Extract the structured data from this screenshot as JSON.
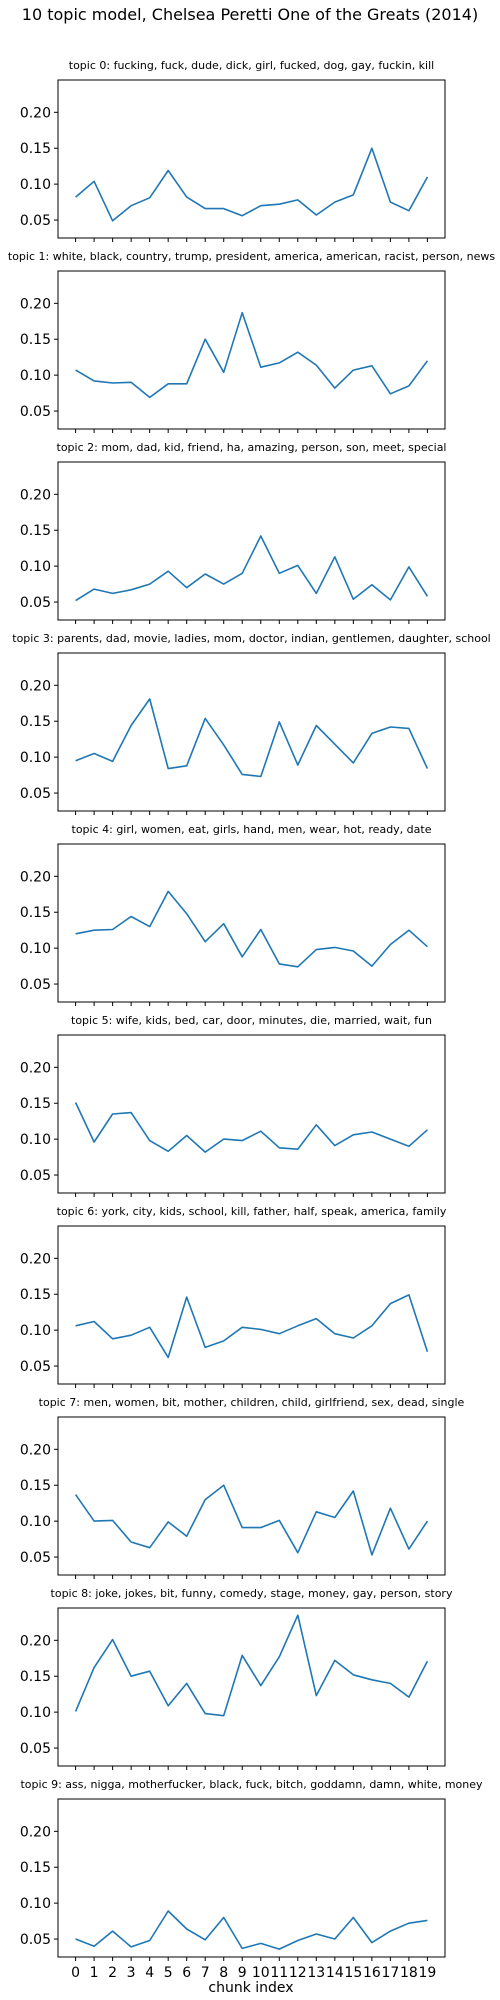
{
  "suptitle": "10 topic model, Chelsea Peretti  One of the Greats (2014)",
  "xlabel": "chunk index",
  "chart_data": {
    "type": "line",
    "x": [
      0,
      1,
      2,
      3,
      4,
      5,
      6,
      7,
      8,
      9,
      10,
      11,
      12,
      13,
      14,
      15,
      16,
      17,
      18,
      19
    ],
    "ylim": [
      0.025,
      0.245
    ],
    "yticks": [
      0.05,
      0.1,
      0.15,
      0.2
    ],
    "grid": false,
    "line_color": "#1f77b4",
    "panels": [
      {
        "title": "topic 0: fucking, fuck, dude, dick, girl, fucked, dog, gay, fuckin, kill",
        "values": [
          0.082,
          0.104,
          0.049,
          0.07,
          0.081,
          0.119,
          0.082,
          0.066,
          0.066,
          0.056,
          0.07,
          0.072,
          0.078,
          0.057,
          0.075,
          0.085,
          0.15,
          0.075,
          0.063,
          0.11
        ]
      },
      {
        "title": "topic 1: white, black, country, trump, president, america, american, racist, person, news",
        "values": [
          0.107,
          0.092,
          0.089,
          0.09,
          0.069,
          0.088,
          0.088,
          0.15,
          0.104,
          0.187,
          0.111,
          0.117,
          0.132,
          0.114,
          0.082,
          0.107,
          0.113,
          0.074,
          0.085,
          0.12
        ]
      },
      {
        "title": "topic 2: mom, dad, kid, friend, ha, amazing, person, son, meet, special",
        "values": [
          0.052,
          0.068,
          0.062,
          0.067,
          0.075,
          0.093,
          0.07,
          0.089,
          0.075,
          0.09,
          0.142,
          0.09,
          0.101,
          0.062,
          0.113,
          0.054,
          0.074,
          0.053,
          0.099,
          0.058
        ]
      },
      {
        "title": "topic 3: parents, dad, movie, ladies, mom, doctor, indian, gentlemen, daughter, school",
        "values": [
          0.095,
          0.105,
          0.094,
          0.144,
          0.181,
          0.084,
          0.088,
          0.154,
          0.117,
          0.076,
          0.073,
          0.149,
          0.089,
          0.144,
          0.118,
          0.092,
          0.133,
          0.142,
          0.14,
          0.084
        ]
      },
      {
        "title": "topic 4: girl, women, eat, girls, hand, men, wear, hot, ready, date",
        "values": [
          0.12,
          0.125,
          0.126,
          0.144,
          0.13,
          0.179,
          0.148,
          0.109,
          0.134,
          0.088,
          0.126,
          0.078,
          0.074,
          0.098,
          0.101,
          0.096,
          0.075,
          0.105,
          0.125,
          0.102
        ]
      },
      {
        "title": "topic 5: wife, kids, bed, car, door, minutes, die, married, wait, fun",
        "values": [
          0.151,
          0.096,
          0.135,
          0.137,
          0.098,
          0.083,
          0.105,
          0.082,
          0.1,
          0.098,
          0.111,
          0.088,
          0.086,
          0.12,
          0.091,
          0.106,
          0.11,
          0.1,
          0.09,
          0.113
        ]
      },
      {
        "title": "topic 6: york, city, kids, school, kill, father, half, speak, america, family",
        "values": [
          0.106,
          0.112,
          0.088,
          0.093,
          0.104,
          0.062,
          0.146,
          0.076,
          0.085,
          0.104,
          0.101,
          0.095,
          0.106,
          0.116,
          0.095,
          0.089,
          0.106,
          0.137,
          0.149,
          0.07
        ]
      },
      {
        "title": "topic 7: men, women, bit, mother, children, child, girlfriend, sex, dead, single",
        "values": [
          0.137,
          0.1,
          0.101,
          0.071,
          0.063,
          0.099,
          0.079,
          0.13,
          0.15,
          0.091,
          0.091,
          0.101,
          0.056,
          0.113,
          0.105,
          0.142,
          0.053,
          0.118,
          0.061,
          0.1
        ]
      },
      {
        "title": "topic 8: joke, jokes, bit, funny, comedy, stage, money, gay, person, story",
        "values": [
          0.101,
          0.162,
          0.201,
          0.15,
          0.157,
          0.109,
          0.14,
          0.098,
          0.095,
          0.179,
          0.137,
          0.177,
          0.235,
          0.123,
          0.172,
          0.152,
          0.145,
          0.14,
          0.121,
          0.171
        ]
      },
      {
        "title": "topic 9: ass, nigga, motherfucker, black, fuck, bitch, goddamn, damn, white, money",
        "values": [
          0.05,
          0.04,
          0.061,
          0.039,
          0.048,
          0.089,
          0.064,
          0.049,
          0.08,
          0.037,
          0.044,
          0.036,
          0.048,
          0.057,
          0.05,
          0.08,
          0.045,
          0.061,
          0.072,
          0.076
        ]
      }
    ]
  }
}
